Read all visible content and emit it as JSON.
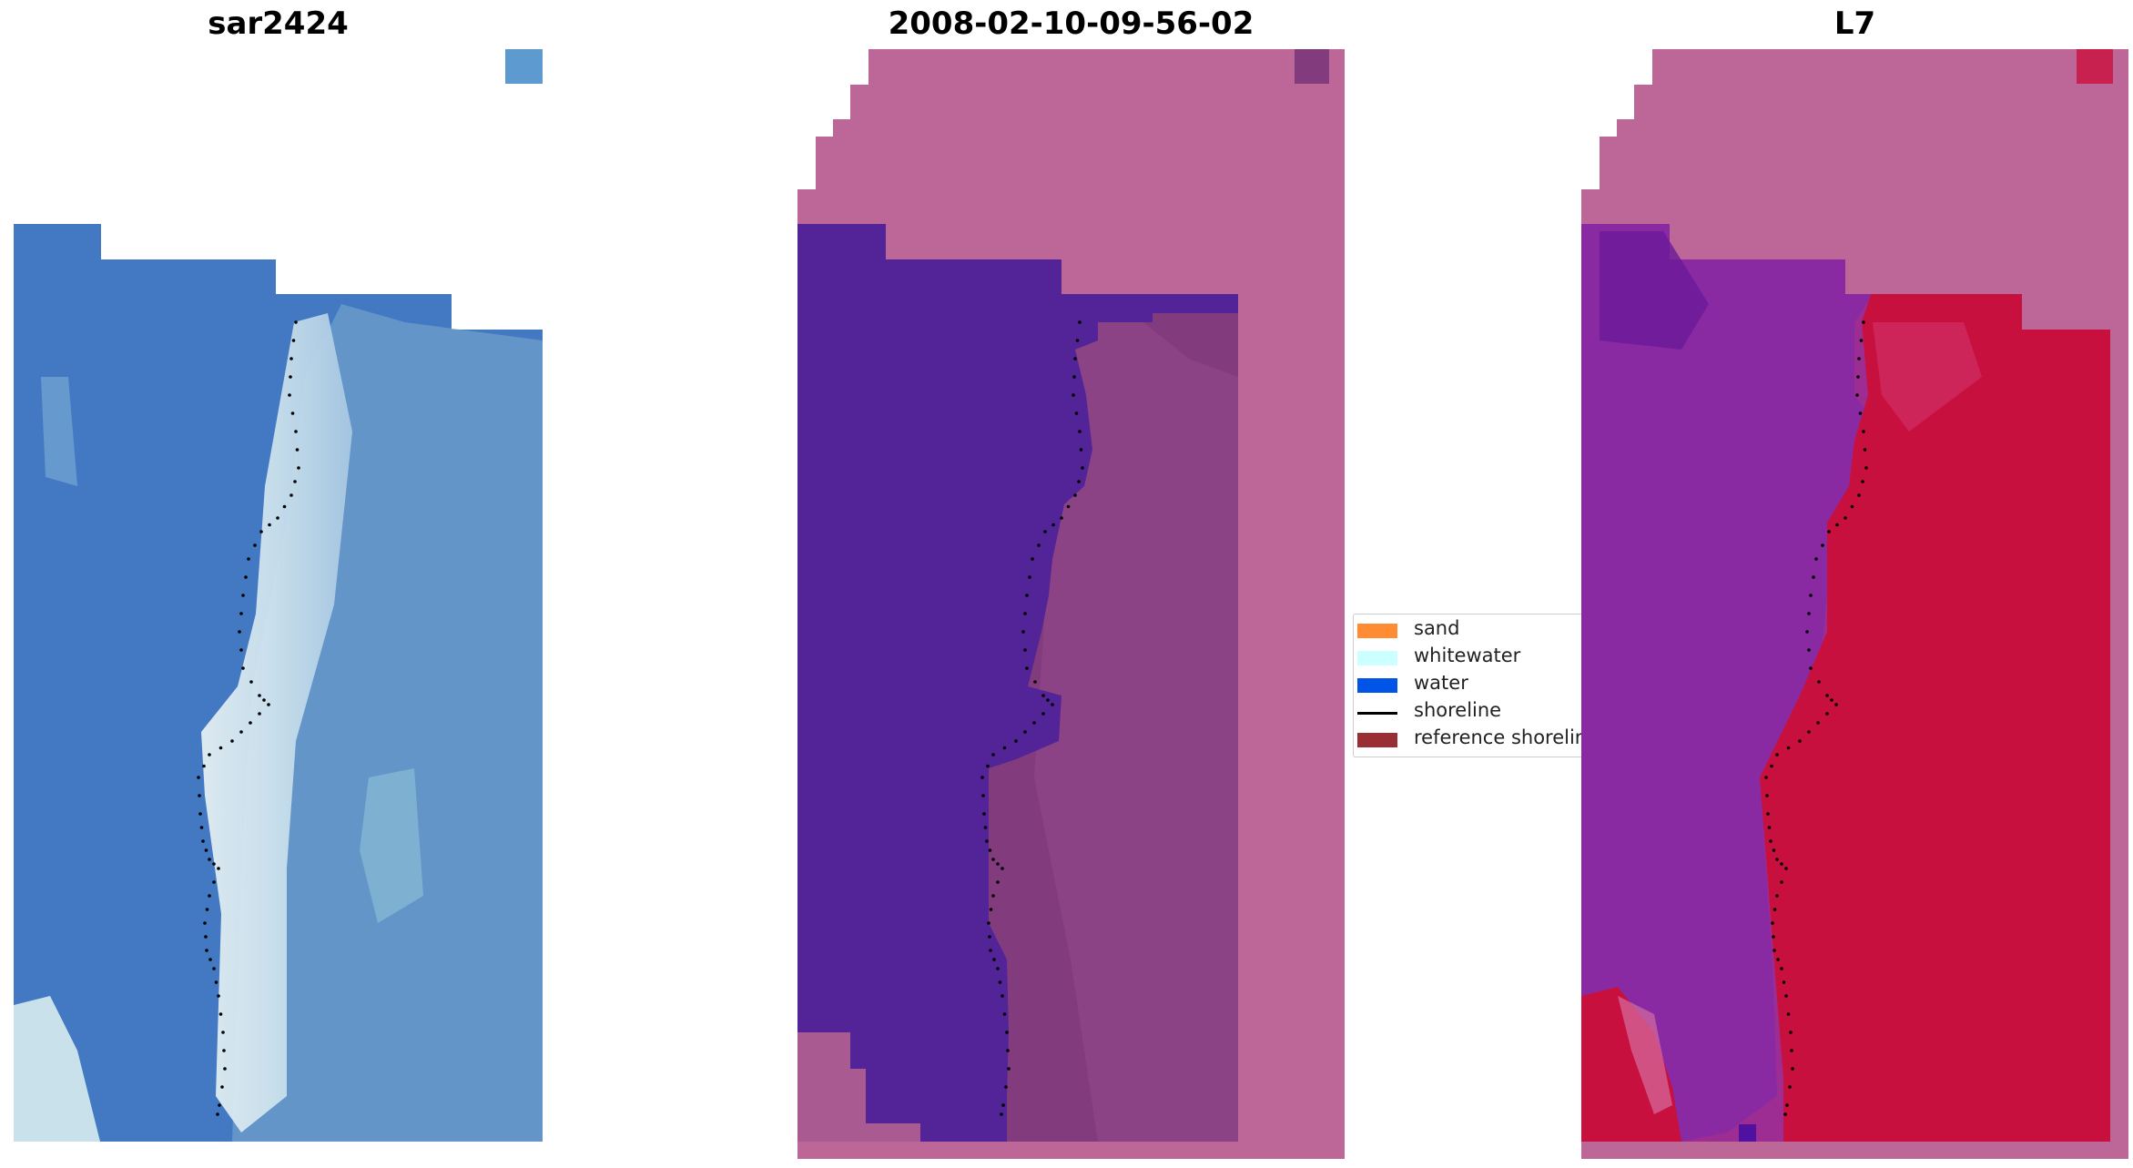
{
  "panels": [
    {
      "title": "sar2424"
    },
    {
      "title": "2008-02-10-09-56-02"
    },
    {
      "title": "L7"
    }
  ],
  "legend": [
    {
      "label": "sand",
      "color": "#ff8c33",
      "kind": "patch"
    },
    {
      "label": "whitewater",
      "color": "#ccffff",
      "kind": "patch"
    },
    {
      "label": "water",
      "color": "#0055e8",
      "kind": "patch"
    },
    {
      "label": "shoreline",
      "color": "#000000",
      "kind": "line"
    },
    {
      "label": "reference shoreline",
      "color": "#992e35",
      "kind": "patch"
    }
  ],
  "colors": {
    "rgb_water": "#3f78c2",
    "rgb_whitewater": "#e6f2f5",
    "class_water": "#532398",
    "class_land": "#bc6797",
    "class_mixed": "#823b7d",
    "ndwi_low": "#6a1a9a",
    "ndwi_high": "#c8103f",
    "ndwi_nodata": "#bc6797"
  }
}
